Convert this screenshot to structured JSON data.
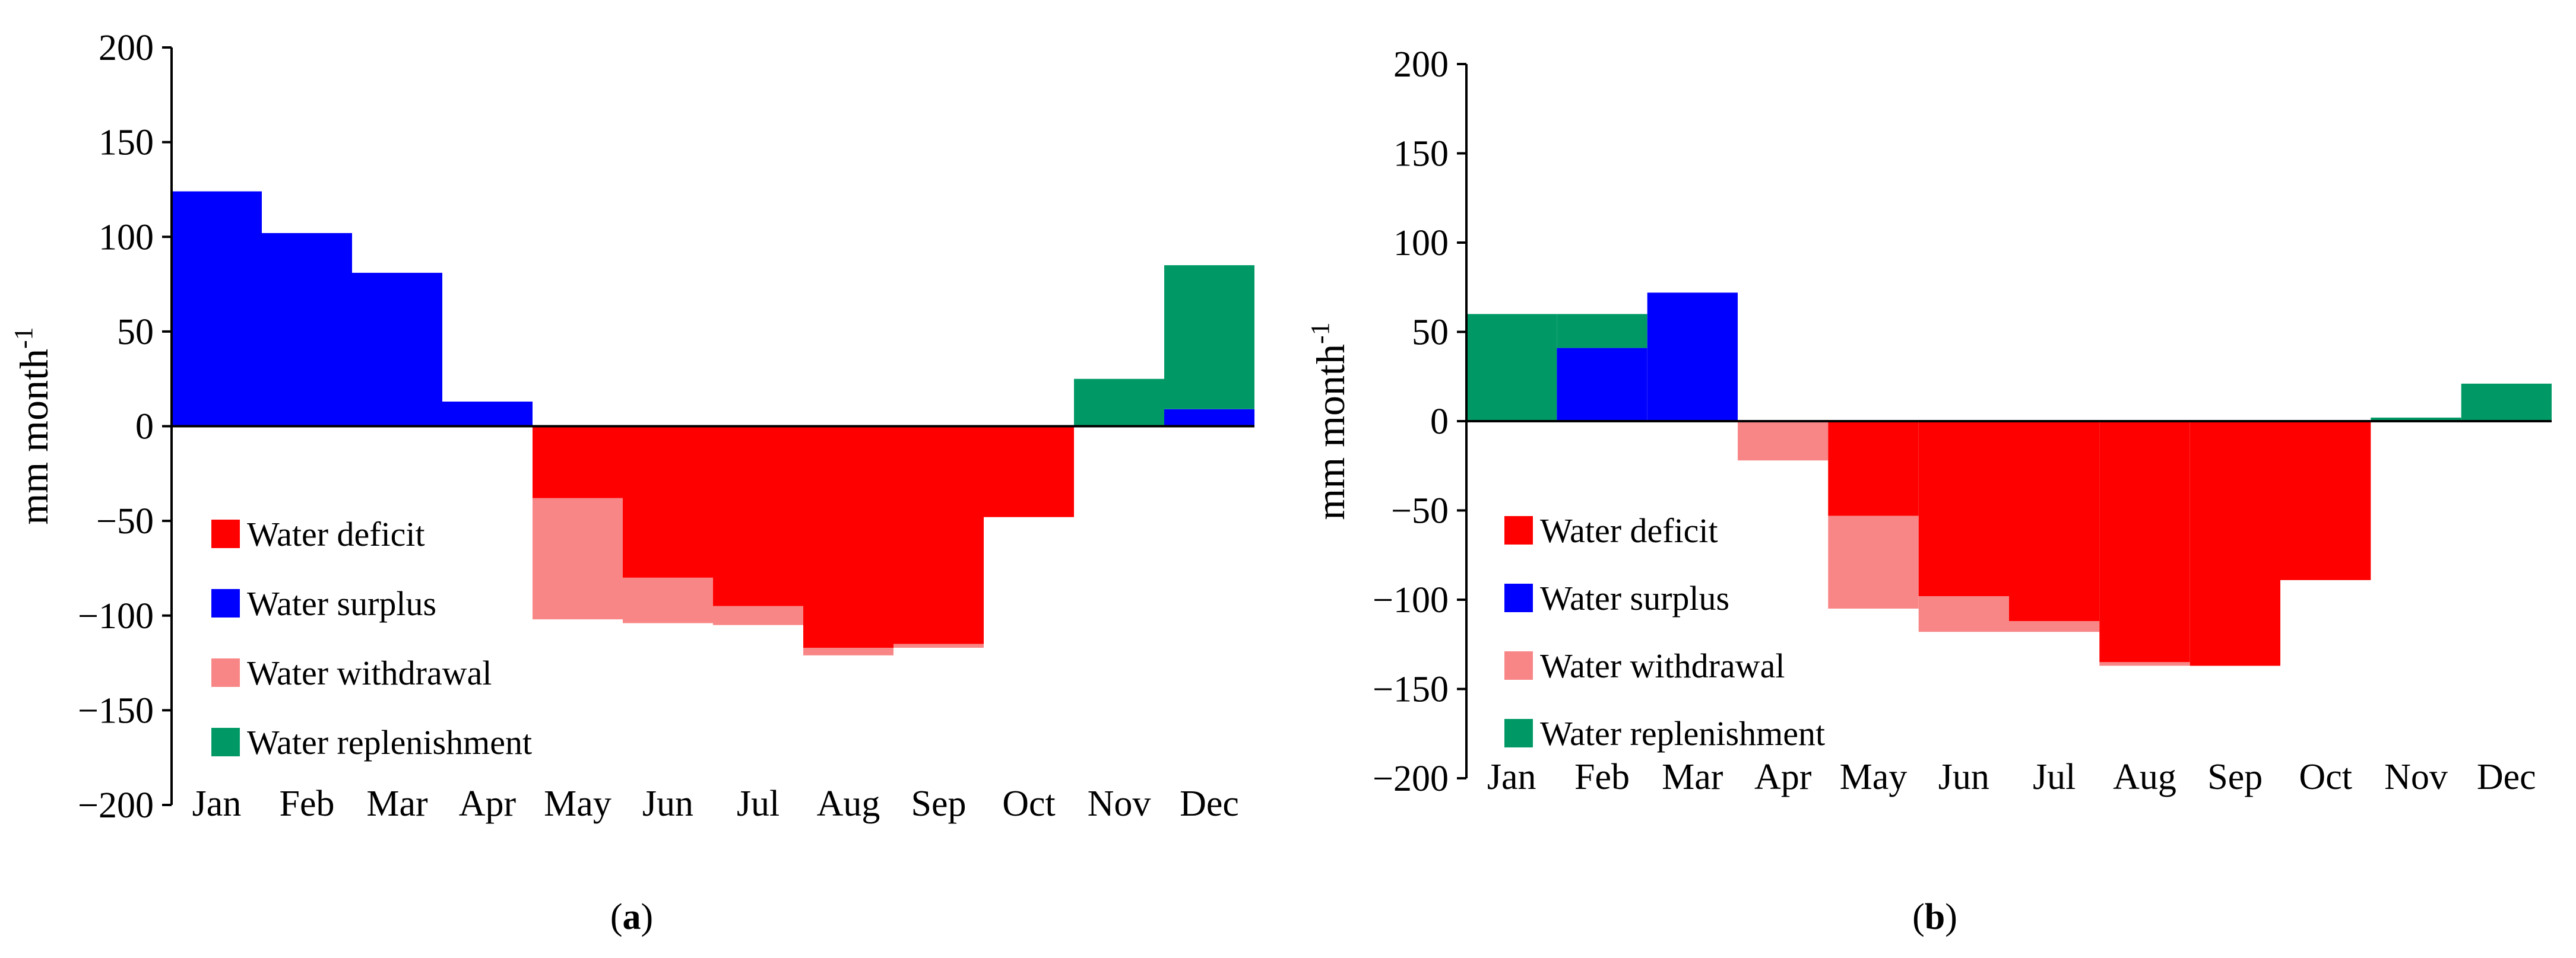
{
  "colors": {
    "deficit": "#ff0000",
    "surplus": "#0000ff",
    "withdrawal": "#f98686",
    "replenishment": "#009966",
    "axis": "#000000"
  },
  "chart_data": [
    {
      "type": "bar",
      "panel": "a",
      "caption": {
        "pre": "(",
        "letter": "a",
        "post": ")"
      },
      "ylabel_base": "mm month",
      "ylabel_sup": "-1",
      "ylim": [
        -200,
        200
      ],
      "yticks": [
        200,
        150,
        100,
        50,
        0,
        -50,
        -100,
        -150,
        -200
      ],
      "ytick_labels": [
        "200",
        "150",
        "100",
        "50",
        "0",
        "−50",
        "−100",
        "−150",
        "−200"
      ],
      "categories": [
        "Jan",
        "Feb",
        "Mar",
        "Apr",
        "May",
        "Jun",
        "Jul",
        "Aug",
        "Sep",
        "Oct",
        "Nov",
        "Dec"
      ],
      "series": [
        {
          "name": "Water deficit",
          "key": "deficit",
          "values": [
            0,
            0,
            0,
            0,
            -38,
            -80,
            -95,
            -117,
            -115,
            -48,
            0,
            0
          ]
        },
        {
          "name": "Water surplus",
          "key": "surplus",
          "values": [
            124,
            102,
            81,
            13,
            0,
            0,
            0,
            0,
            0,
            0,
            0,
            9
          ]
        },
        {
          "name": "Water withdrawal",
          "key": "withdrawal",
          "values": [
            0,
            0,
            0,
            0,
            -64,
            -24,
            -10,
            -4,
            -2,
            0,
            0,
            0
          ]
        },
        {
          "name": "Water replenishment",
          "key": "replenishment",
          "values": [
            0,
            0,
            0,
            0,
            0,
            0,
            0,
            0,
            0,
            0,
            25,
            76
          ]
        }
      ],
      "legend": [
        "Water deficit",
        "Water surplus",
        "Water withdrawal",
        "Water replenishment"
      ]
    },
    {
      "type": "bar",
      "panel": "b",
      "caption": {
        "pre": "(",
        "letter": "b",
        "post": ")"
      },
      "ylabel_base": "mm month",
      "ylabel_sup": "-1",
      "ylim": [
        -200,
        200
      ],
      "yticks": [
        200,
        150,
        100,
        50,
        0,
        -50,
        -100,
        -150,
        -200
      ],
      "ytick_labels": [
        "200",
        "150",
        "100",
        "50",
        "0",
        "−50",
        "−100",
        "−150",
        "−200"
      ],
      "categories": [
        "Jan",
        "Feb",
        "Mar",
        "Apr",
        "May",
        "Jun",
        "Jul",
        "Aug",
        "Sep",
        "Oct",
        "Nov",
        "Dec"
      ],
      "series": [
        {
          "name": "Water deficit",
          "key": "deficit",
          "values": [
            0,
            0,
            0,
            0,
            -53,
            -98,
            -112,
            -135,
            -137,
            -89,
            0,
            0
          ]
        },
        {
          "name": "Water surplus",
          "key": "surplus",
          "values": [
            0,
            41,
            72,
            0,
            0,
            0,
            0,
            0,
            0,
            0,
            0,
            0
          ]
        },
        {
          "name": "Water withdrawal",
          "key": "withdrawal",
          "values": [
            0,
            0,
            0,
            -22,
            -52,
            -20,
            -6,
            -2,
            0,
            0,
            0,
            0
          ]
        },
        {
          "name": "Water replenishment",
          "key": "replenishment",
          "values": [
            60,
            19,
            0,
            0,
            0,
            0,
            0,
            0,
            0,
            0,
            2,
            21
          ]
        }
      ],
      "legend": [
        "Water deficit",
        "Water surplus",
        "Water withdrawal",
        "Water replenishment"
      ]
    }
  ]
}
